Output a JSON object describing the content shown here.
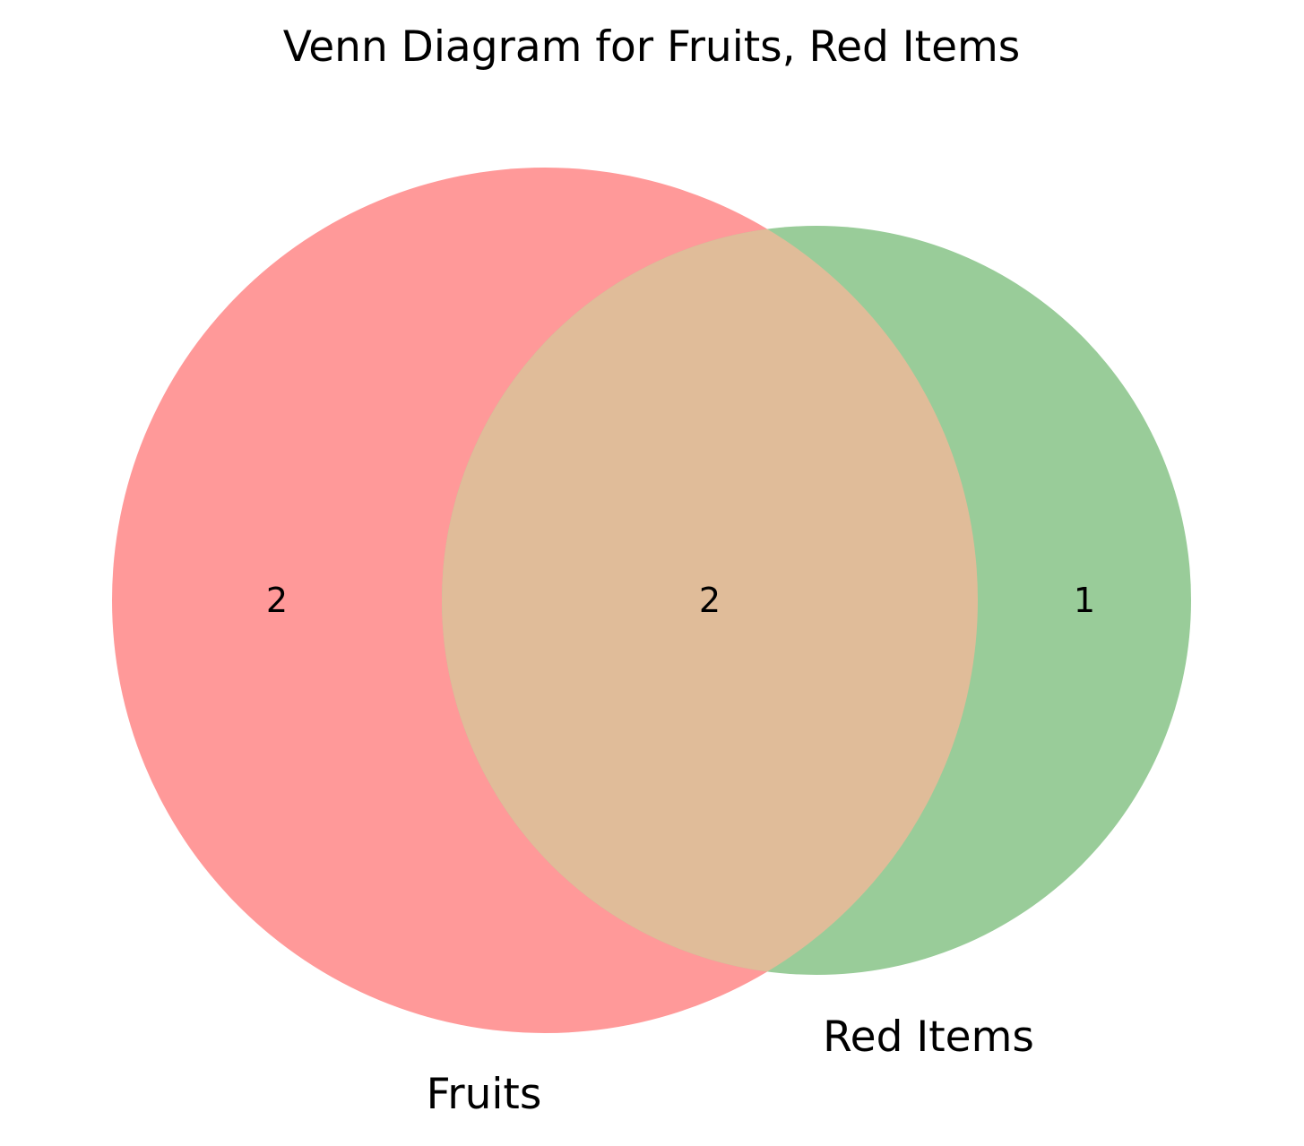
{
  "title": "Venn Diagram for Fruits, Red Items",
  "sets": [
    {
      "id": "fruits",
      "label": "Fruits",
      "color": "#ff9999"
    },
    {
      "id": "red_items",
      "label": "Red Items",
      "color": "#99cc99"
    }
  ],
  "overlap_color": "#e0bc99",
  "regions": {
    "fruits_only": "2",
    "both": "2",
    "red_items_only": "1"
  }
}
